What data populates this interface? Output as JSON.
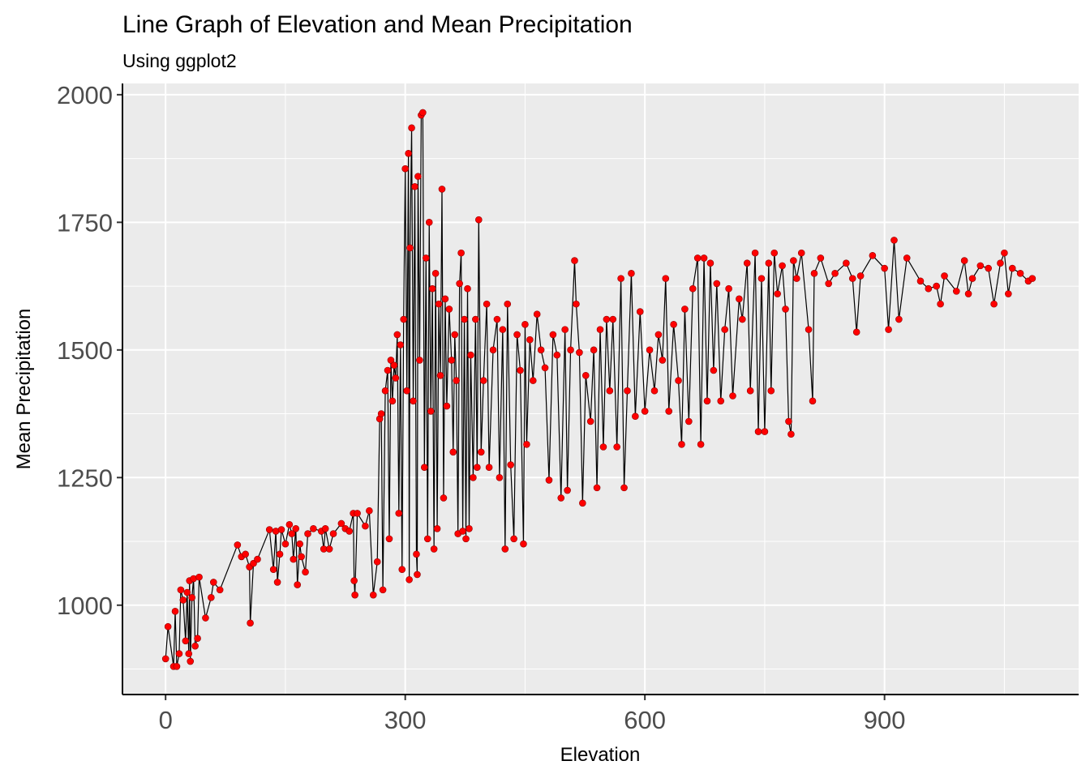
{
  "chart_data": {
    "type": "line",
    "title": "Line Graph of Elevation and Mean Precipitation",
    "subtitle": "Using ggplot2",
    "xlabel": "Elevation",
    "ylabel": "Mean Precipitation",
    "line_color": "#000000",
    "point_color": "#ff0000",
    "panel_color": "#ebebeb",
    "grid": true,
    "xlim": [
      -54,
      1143
    ],
    "ylim": [
      825,
      2022
    ],
    "xticks": [
      0,
      300,
      600,
      900
    ],
    "yticks": [
      1000,
      1250,
      1500,
      1750,
      2000
    ],
    "xminorticks": [
      150,
      450,
      750,
      1050
    ],
    "yminorticks": [
      875,
      1125,
      1375,
      1625,
      1875
    ],
    "x": [
      0,
      3,
      10,
      12,
      14,
      17,
      19,
      22,
      25,
      27,
      29,
      30,
      31,
      33,
      35,
      37,
      40,
      42,
      50,
      57,
      60,
      68,
      90,
      95,
      100,
      105,
      106,
      110,
      115,
      130,
      135,
      138,
      140,
      143,
      145,
      150,
      155,
      158,
      160,
      163,
      165,
      168,
      170,
      175,
      178,
      185,
      195,
      198,
      200,
      205,
      210,
      220,
      225,
      230,
      235,
      236,
      237,
      240,
      250,
      255,
      260,
      265,
      268,
      270,
      272,
      275,
      278,
      280,
      282,
      284,
      286,
      288,
      290,
      292,
      294,
      296,
      298,
      300,
      302,
      304,
      305,
      306,
      308,
      310,
      312,
      314,
      315,
      316,
      318,
      320,
      322,
      324,
      326,
      328,
      330,
      332,
      334,
      336,
      338,
      340,
      342,
      344,
      346,
      348,
      350,
      352,
      355,
      358,
      360,
      362,
      364,
      366,
      368,
      370,
      372,
      374,
      376,
      378,
      380,
      382,
      385,
      388,
      390,
      392,
      395,
      398,
      402,
      405,
      410,
      415,
      418,
      422,
      425,
      428,
      432,
      436,
      440,
      444,
      448,
      450,
      452,
      456,
      460,
      465,
      470,
      475,
      480,
      485,
      490,
      495,
      500,
      503,
      507,
      512,
      514,
      518,
      522,
      526,
      532,
      536,
      540,
      544,
      548,
      552,
      556,
      560,
      565,
      570,
      574,
      578,
      583,
      588,
      594,
      600,
      606,
      612,
      617,
      622,
      626,
      630,
      636,
      642,
      646,
      650,
      655,
      660,
      666,
      670,
      674,
      678,
      682,
      686,
      690,
      695,
      700,
      705,
      710,
      718,
      722,
      728,
      732,
      738,
      742,
      746,
      750,
      755,
      758,
      762,
      766,
      772,
      776,
      780,
      783,
      786,
      790,
      796,
      805,
      810,
      812,
      820,
      830,
      838,
      852,
      860,
      865,
      870,
      885,
      900,
      905,
      912,
      918,
      928,
      945,
      955,
      965,
      970,
      975,
      990,
      1000,
      1005,
      1010,
      1020,
      1030,
      1037,
      1045,
      1050,
      1055,
      1060,
      1070,
      1080,
      1085
    ],
    "values": [
      895,
      958,
      880,
      988,
      880,
      905,
      1030,
      1010,
      930,
      1025,
      905,
      1048,
      890,
      1015,
      1052,
      920,
      935,
      1055,
      975,
      1015,
      1045,
      1030,
      1118,
      1095,
      1100,
      1075,
      965,
      1082,
      1090,
      1148,
      1070,
      1145,
      1045,
      1100,
      1148,
      1120,
      1158,
      1140,
      1090,
      1150,
      1040,
      1120,
      1095,
      1065,
      1140,
      1150,
      1145,
      1110,
      1150,
      1110,
      1140,
      1160,
      1150,
      1145,
      1180,
      1048,
      1020,
      1180,
      1155,
      1185,
      1020,
      1085,
      1365,
      1375,
      1030,
      1420,
      1460,
      1130,
      1480,
      1400,
      1470,
      1445,
      1530,
      1180,
      1510,
      1070,
      1560,
      1855,
      1420,
      1885,
      1050,
      1700,
      1935,
      1400,
      1820,
      1100,
      1060,
      1840,
      1480,
      1960,
      1965,
      1270,
      1680,
      1130,
      1750,
      1380,
      1620,
      1110,
      1650,
      1150,
      1590,
      1450,
      1815,
      1210,
      1600,
      1390,
      1580,
      1480,
      1300,
      1530,
      1440,
      1140,
      1630,
      1690,
      1145,
      1560,
      1130,
      1620,
      1150,
      1490,
      1250,
      1560,
      1270,
      1755,
      1300,
      1440,
      1590,
      1270,
      1500,
      1560,
      1250,
      1540,
      1110,
      1590,
      1275,
      1130,
      1530,
      1460,
      1120,
      1550,
      1315,
      1520,
      1440,
      1570,
      1500,
      1465,
      1245,
      1530,
      1490,
      1210,
      1540,
      1225,
      1500,
      1675,
      1590,
      1495,
      1200,
      1450,
      1360,
      1500,
      1230,
      1540,
      1310,
      1560,
      1420,
      1560,
      1310,
      1640,
      1230,
      1420,
      1650,
      1370,
      1575,
      1380,
      1500,
      1420,
      1530,
      1480,
      1640,
      1380,
      1550,
      1440,
      1315,
      1580,
      1360,
      1620,
      1680,
      1315,
      1680,
      1400,
      1670,
      1460,
      1630,
      1400,
      1540,
      1620,
      1410,
      1600,
      1560,
      1670,
      1420,
      1690,
      1340,
      1640,
      1340,
      1670,
      1420,
      1690,
      1610,
      1665,
      1580,
      1360,
      1335,
      1675,
      1640,
      1690,
      1540,
      1400,
      1650,
      1680,
      1630,
      1650,
      1670,
      1640,
      1535,
      1645,
      1685,
      1660,
      1540,
      1715,
      1560,
      1680,
      1635,
      1620,
      1625,
      1590,
      1645,
      1615,
      1675,
      1610,
      1640,
      1665,
      1660,
      1590,
      1670,
      1690,
      1610,
      1660,
      1650,
      1635,
      1640
    ]
  }
}
